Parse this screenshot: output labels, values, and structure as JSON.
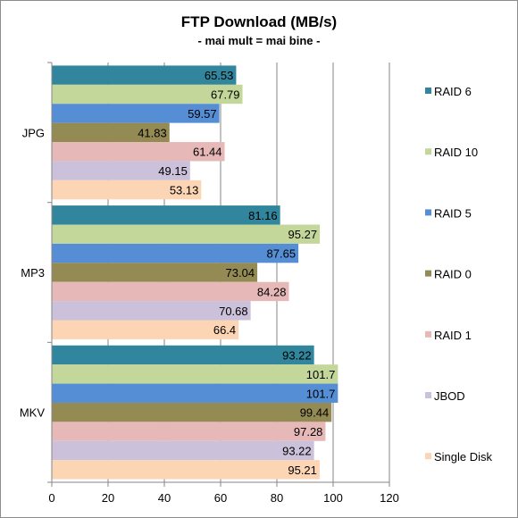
{
  "chart_data": {
    "type": "bar",
    "orientation": "horizontal",
    "title": "FTP Download (MB/s)",
    "subtitle": "- mai mult = mai bine -",
    "categories": [
      "JPG",
      "MP3",
      "MKV"
    ],
    "series": [
      {
        "name": "RAID 6",
        "color": "#31859c",
        "values": [
          65.53,
          81.16,
          93.22
        ]
      },
      {
        "name": "RAID 10",
        "color": "#c4d79b",
        "values": [
          67.79,
          95.27,
          101.7
        ]
      },
      {
        "name": "RAID 5",
        "color": "#558ed5",
        "values": [
          59.57,
          87.65,
          101.7
        ]
      },
      {
        "name": "RAID 0",
        "color": "#948a54",
        "values": [
          41.83,
          73.04,
          99.44
        ]
      },
      {
        "name": "RAID 1",
        "color": "#e6b9b8",
        "values": [
          61.44,
          84.28,
          97.28
        ]
      },
      {
        "name": "JBOD",
        "color": "#ccc1da",
        "values": [
          49.15,
          70.68,
          93.22
        ]
      },
      {
        "name": "Single Disk",
        "color": "#fcd5b5",
        "values": [
          53.13,
          66.4,
          95.21
        ]
      }
    ],
    "data_labels": [
      [
        "65.53",
        "81.16",
        "93.22"
      ],
      [
        "67.79",
        "95.27",
        "101.7"
      ],
      [
        "59.57",
        "87.65",
        "101.7"
      ],
      [
        "41.83",
        "73.04",
        "99.44"
      ],
      [
        "61.44",
        "84.28",
        "97.28"
      ],
      [
        "49.15",
        "70.68",
        "93.22"
      ],
      [
        "53.13",
        "66.4",
        "95.21"
      ]
    ],
    "xlim": [
      0,
      120
    ],
    "xticks": [
      "0",
      "20",
      "40",
      "60",
      "80",
      "100",
      "120"
    ],
    "xlabel": "",
    "ylabel": "",
    "grid": true,
    "legend_position": "right"
  }
}
